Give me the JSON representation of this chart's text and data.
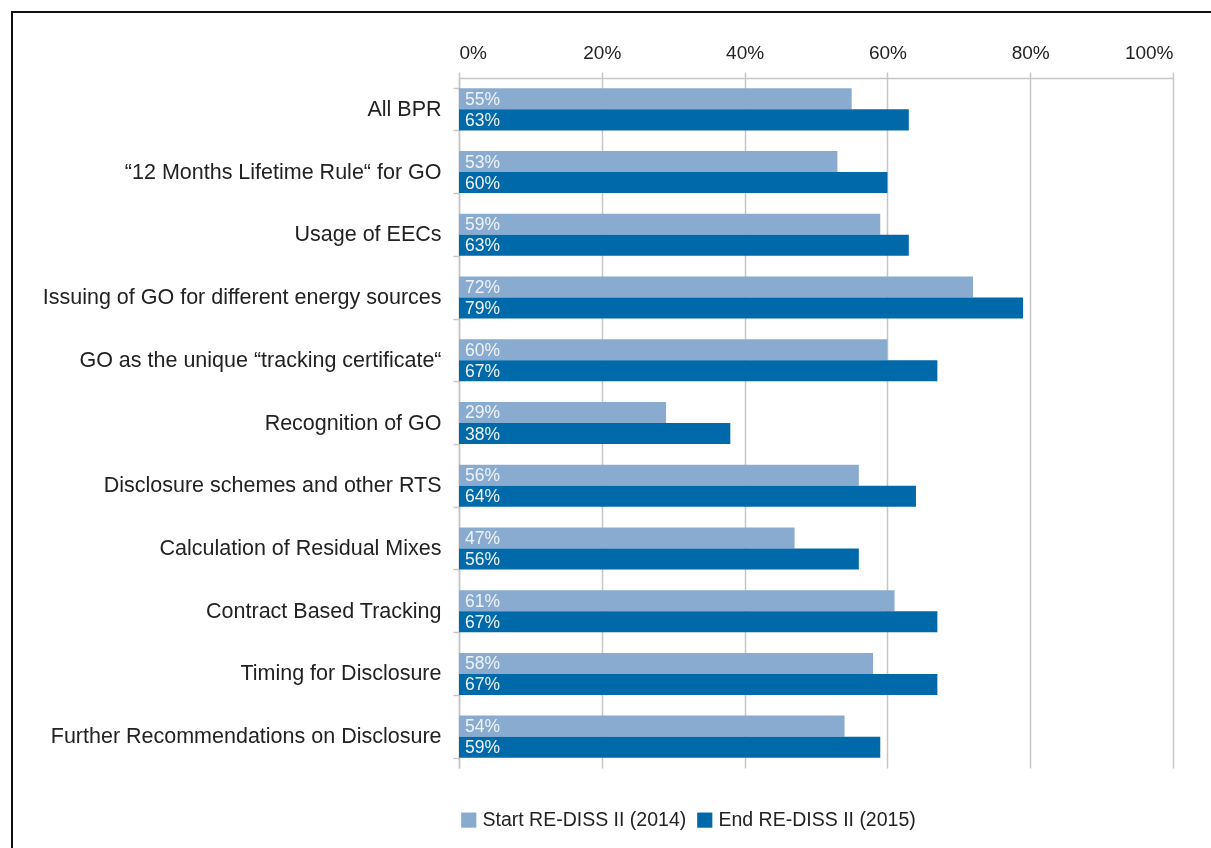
{
  "chart_data": {
    "type": "bar",
    "orientation": "horizontal",
    "categories": [
      "All BPR",
      "“12 Months Lifetime Rule“ for GO",
      "Usage of EECs",
      "Issuing of GO for different energy sources",
      "GO as the unique “tracking certificate“",
      "Recognition of GO",
      "Disclosure schemes and other RTS",
      "Calculation of Residual Mixes",
      "Contract Based Tracking",
      "Timing for Disclosure",
      "Further Recommendations on Disclosure"
    ],
    "series": [
      {
        "name": "Start RE-DISS II (2014)",
        "color": "#8aabd0",
        "values": [
          55,
          53,
          59,
          72,
          60,
          29,
          56,
          47,
          61,
          58,
          54
        ],
        "value_labels": [
          "55%",
          "53%",
          "59%",
          "72%",
          "60%",
          "29%",
          "56%",
          "47%",
          "61%",
          "58%",
          "54%"
        ]
      },
      {
        "name": "End RE-DISS II (2015)",
        "color": "#0069a9",
        "values": [
          63,
          60,
          63,
          79,
          67,
          38,
          64,
          56,
          67,
          67,
          59
        ],
        "value_labels": [
          "63%",
          "60%",
          "63%",
          "79%",
          "67%",
          "38%",
          "64%",
          "56%",
          "67%",
          "67%",
          "59%"
        ]
      }
    ],
    "xlim": [
      0,
      100
    ],
    "xticks": [
      {
        "value": 0,
        "label": "0%"
      },
      {
        "value": 20,
        "label": "20%"
      },
      {
        "value": 40,
        "label": "40%"
      },
      {
        "value": 60,
        "label": "60%"
      },
      {
        "value": 80,
        "label": "80%"
      },
      {
        "value": 100,
        "label": "100%"
      }
    ],
    "grid": "x",
    "legend": "bottom"
  }
}
